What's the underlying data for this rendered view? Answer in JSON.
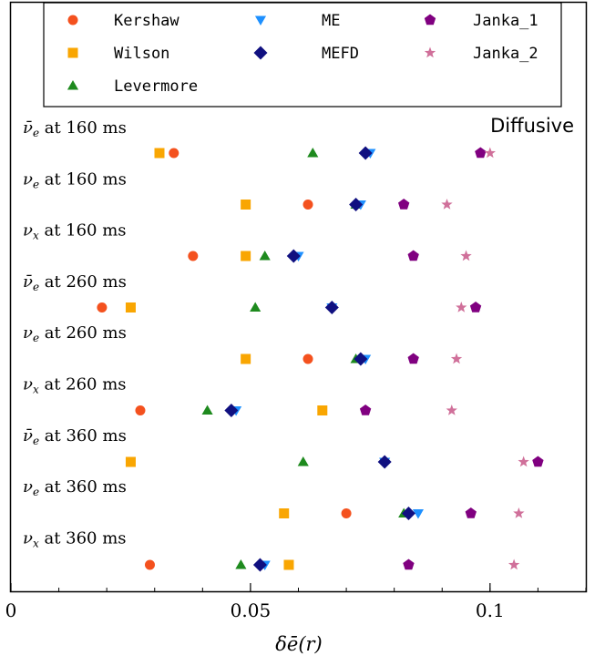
{
  "chart_data": {
    "type": "scatter",
    "title": "",
    "annotation": "Diffusive",
    "xlabel": "δē(r)",
    "ylabel": "",
    "xlim": [
      0,
      0.12
    ],
    "xticks": [
      {
        "value": 0,
        "label": "0"
      },
      {
        "value": 0.05,
        "label": "0.05"
      },
      {
        "value": 0.1,
        "label": "0.1"
      }
    ],
    "legend_position": "top",
    "rows": [
      {
        "pre": "ν̄",
        "sub": "e",
        "suffix": " at 160 ms"
      },
      {
        "pre": "ν",
        "sub": "e",
        "suffix": " at 160 ms"
      },
      {
        "pre": "ν",
        "sub": "x",
        "suffix": " at 160 ms"
      },
      {
        "pre": "ν̄",
        "sub": "e",
        "suffix": " at 260 ms"
      },
      {
        "pre": "ν",
        "sub": "e",
        "suffix": " at 260 ms"
      },
      {
        "pre": "ν",
        "sub": "x",
        "suffix": " at 260 ms"
      },
      {
        "pre": "ν̄",
        "sub": "e",
        "suffix": " at 360 ms"
      },
      {
        "pre": "ν",
        "sub": "e",
        "suffix": " at 360 ms"
      },
      {
        "pre": "ν",
        "sub": "x",
        "suffix": " at 360 ms"
      }
    ],
    "series": [
      {
        "name": "Kershaw",
        "marker": "circle",
        "color": "#f4511e",
        "values": [
          0.034,
          0.062,
          0.038,
          0.019,
          0.062,
          0.027,
          null,
          0.07,
          0.029
        ]
      },
      {
        "name": "Wilson",
        "marker": "square",
        "color": "#f9a602",
        "values": [
          0.031,
          0.049,
          0.049,
          0.025,
          0.049,
          0.065,
          0.025,
          0.057,
          0.058
        ]
      },
      {
        "name": "Levermore",
        "marker": "triangle",
        "color": "#1e8a1e",
        "values": [
          0.063,
          0.072,
          0.053,
          0.051,
          0.072,
          0.041,
          0.061,
          0.082,
          0.048
        ]
      },
      {
        "name": "ME",
        "marker": "tri_down",
        "color": "#1e90ff",
        "values": [
          0.075,
          0.073,
          0.06,
          0.067,
          0.074,
          0.047,
          0.078,
          0.085,
          0.053
        ]
      },
      {
        "name": "MEFD",
        "marker": "diamond",
        "color": "#101080",
        "values": [
          0.074,
          0.072,
          0.059,
          0.067,
          0.073,
          0.046,
          0.078,
          0.083,
          0.052
        ]
      },
      {
        "name": "Janka_1",
        "marker": "pentagon",
        "color": "#800080",
        "values": [
          0.098,
          0.082,
          0.084,
          0.097,
          0.084,
          0.074,
          0.11,
          0.096,
          0.083
        ]
      },
      {
        "name": "Janka_2",
        "marker": "star",
        "color": "#d0709a",
        "values": [
          0.1,
          0.091,
          0.095,
          0.094,
          0.093,
          0.092,
          0.107,
          0.106,
          0.105
        ]
      }
    ]
  }
}
